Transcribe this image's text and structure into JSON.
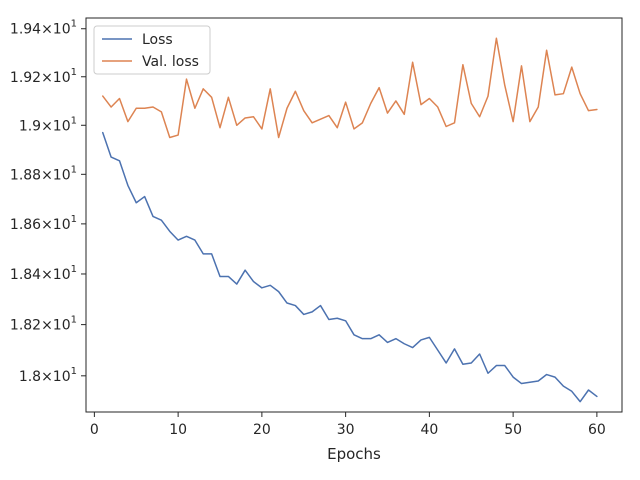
{
  "chart_data": {
    "type": "line",
    "title": "",
    "xlabel": "Epochs",
    "ylabel": "",
    "xlim": [
      -1,
      63
    ],
    "ylim": [
      17.86,
      19.445
    ],
    "y_scale": "log",
    "grid": false,
    "legend_position": "top-left",
    "x_ticks": [
      0,
      10,
      20,
      30,
      40,
      50,
      60
    ],
    "x_tick_labels": [
      "0",
      "10",
      "20",
      "30",
      "40",
      "50",
      "60"
    ],
    "y_ticks": [
      18.0,
      18.2,
      18.4,
      18.6,
      18.8,
      19.0,
      19.2,
      19.4
    ],
    "y_tick_labels": [
      {
        "mant": "1.8",
        "exp": "1"
      },
      {
        "mant": "1.82",
        "exp": "1"
      },
      {
        "mant": "1.84",
        "exp": "1"
      },
      {
        "mant": "1.86",
        "exp": "1"
      },
      {
        "mant": "1.88",
        "exp": "1"
      },
      {
        "mant": "1.9",
        "exp": "1"
      },
      {
        "mant": "1.92",
        "exp": "1"
      },
      {
        "mant": "1.94",
        "exp": "1"
      }
    ],
    "series": [
      {
        "name": "Loss",
        "color": "#4c72b0",
        "x": [
          1,
          2,
          3,
          4,
          5,
          6,
          7,
          8,
          9,
          10,
          11,
          12,
          13,
          14,
          15,
          16,
          17,
          18,
          19,
          20,
          21,
          22,
          23,
          24,
          25,
          26,
          27,
          28,
          29,
          30,
          31,
          32,
          33,
          34,
          35,
          36,
          37,
          38,
          39,
          40,
          41,
          42,
          43,
          44,
          45,
          46,
          47,
          48,
          49,
          50,
          51,
          52,
          53,
          54,
          55,
          56,
          57,
          58,
          59,
          60
        ],
        "values": [
          18.97,
          18.87,
          18.855,
          18.755,
          18.685,
          18.71,
          18.63,
          18.615,
          18.57,
          18.535,
          18.55,
          18.535,
          18.48,
          18.48,
          18.39,
          18.39,
          18.36,
          18.415,
          18.37,
          18.345,
          18.355,
          18.33,
          18.285,
          18.275,
          18.24,
          18.25,
          18.275,
          18.22,
          18.225,
          18.215,
          18.16,
          18.145,
          18.145,
          18.16,
          18.13,
          18.145,
          18.125,
          18.11,
          18.14,
          18.15,
          18.1,
          18.05,
          18.105,
          18.045,
          18.05,
          18.085,
          18.01,
          18.04,
          18.04,
          17.995,
          17.97,
          17.975,
          17.98,
          18.005,
          17.995,
          17.96,
          17.94,
          17.9,
          17.945,
          17.92
        ]
      },
      {
        "name": "Val. loss",
        "color": "#dd8452",
        "x": [
          1,
          2,
          3,
          4,
          5,
          6,
          7,
          8,
          9,
          10,
          11,
          12,
          13,
          14,
          15,
          16,
          17,
          18,
          19,
          20,
          21,
          22,
          23,
          24,
          25,
          26,
          27,
          28,
          29,
          30,
          31,
          32,
          33,
          34,
          35,
          36,
          37,
          38,
          39,
          40,
          41,
          42,
          43,
          44,
          45,
          46,
          47,
          48,
          49,
          50,
          51,
          52,
          53,
          54,
          55,
          56,
          57,
          58,
          59,
          60
        ],
        "values": [
          19.12,
          19.075,
          19.11,
          19.015,
          19.07,
          19.07,
          19.075,
          19.055,
          18.95,
          18.96,
          19.19,
          19.07,
          19.15,
          19.115,
          18.99,
          19.115,
          19.0,
          19.03,
          19.035,
          18.985,
          19.15,
          18.95,
          19.07,
          19.14,
          19.06,
          19.01,
          19.025,
          19.04,
          18.99,
          19.095,
          18.985,
          19.01,
          19.09,
          19.155,
          19.05,
          19.1,
          19.045,
          19.26,
          19.085,
          19.11,
          19.075,
          18.995,
          19.01,
          19.25,
          19.09,
          19.035,
          19.12,
          19.36,
          19.165,
          19.015,
          19.245,
          19.015,
          19.075,
          19.31,
          19.125,
          19.13,
          19.24,
          19.13,
          19.06,
          19.065
        ]
      }
    ]
  }
}
